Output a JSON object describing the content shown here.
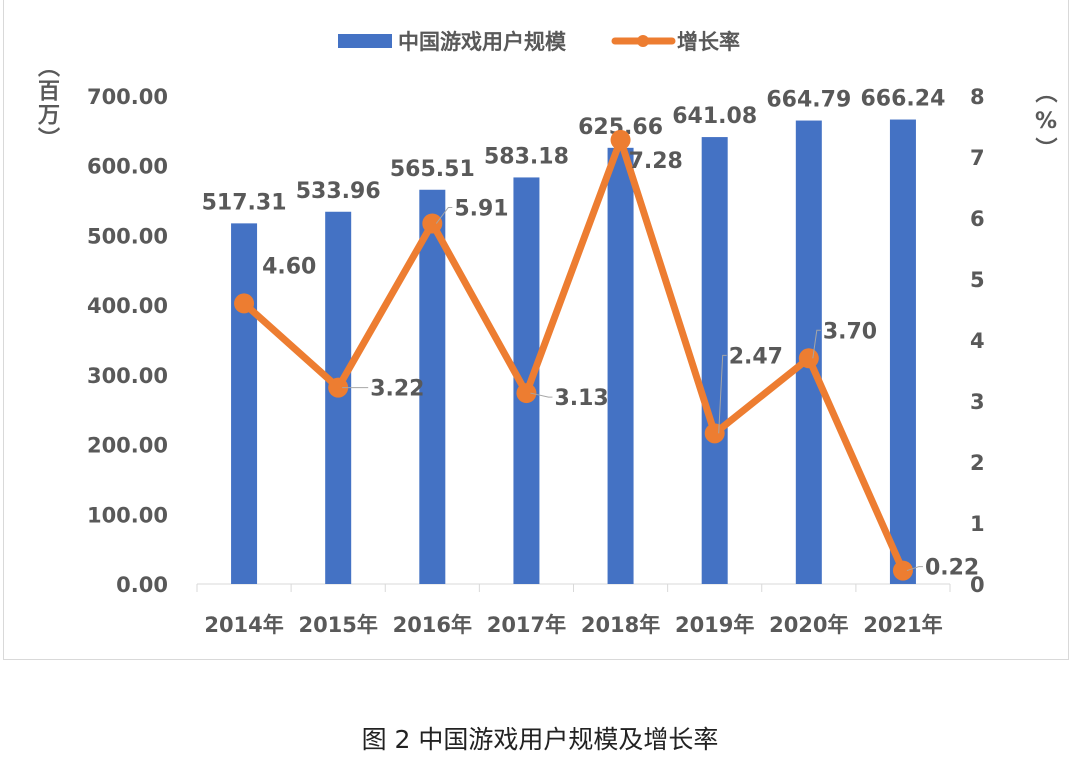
{
  "chart_data": {
    "type": "bar+line",
    "categories": [
      "2014年",
      "2015年",
      "2016年",
      "2017年",
      "2018年",
      "2019年",
      "2020年",
      "2021年"
    ],
    "series": [
      {
        "name": "中国游戏用户规模",
        "type": "bar",
        "axis": "left",
        "color": "#4472C4",
        "values": [
          517.31,
          533.96,
          565.51,
          583.18,
          625.66,
          641.08,
          664.79,
          666.24
        ],
        "labels": [
          "517.31",
          "533.96",
          "565.51",
          "583.18",
          "625.66",
          "641.08",
          "664.79",
          "666.24"
        ]
      },
      {
        "name": "增长率",
        "type": "line",
        "axis": "right",
        "color": "#ED7D31",
        "values": [
          4.6,
          3.22,
          5.91,
          3.13,
          7.28,
          2.47,
          3.7,
          0.22
        ],
        "labels": [
          "4.60",
          "3.22",
          "5.91",
          "3.13",
          "7.28",
          "2.47",
          "3.70",
          "0.22"
        ]
      }
    ],
    "left_axis": {
      "label": "（百万）",
      "ylim": [
        0,
        700
      ],
      "ticks": [
        "0.00",
        "100.00",
        "200.00",
        "300.00",
        "400.00",
        "500.00",
        "600.00",
        "700.00"
      ]
    },
    "right_axis": {
      "label": "（%）",
      "ylim": [
        0,
        8
      ],
      "ticks": [
        "0",
        "1",
        "2",
        "3",
        "4",
        "5",
        "6",
        "7",
        "8"
      ]
    },
    "legend": "top",
    "grid": false
  },
  "caption": "图 2 中国游戏用户规模及增长率"
}
